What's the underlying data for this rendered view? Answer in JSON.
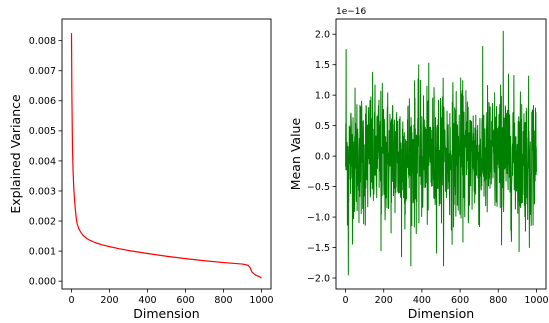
{
  "chart_data": [
    {
      "type": "line",
      "title": "",
      "xlabel": "Dimension",
      "ylabel": "Explained Variance",
      "xlim": [
        -50,
        1050
      ],
      "ylim": [
        -0.00026,
        0.00872
      ],
      "xticks": [
        0,
        200,
        400,
        600,
        800,
        1000
      ],
      "yticks": [
        0.0,
        0.001,
        0.002,
        0.003,
        0.004,
        0.005,
        0.006,
        0.007,
        0.008
      ],
      "ytick_labels": [
        "0.000",
        "0.001",
        "0.002",
        "0.003",
        "0.004",
        "0.005",
        "0.006",
        "0.007",
        "0.008"
      ],
      "grid": false,
      "series": [
        {
          "color": "#ff0000",
          "x": [
            0,
            2,
            5,
            8,
            12,
            16,
            20,
            25,
            30,
            40,
            50,
            60,
            80,
            100,
            130,
            160,
            200,
            250,
            300,
            400,
            500,
            600,
            700,
            800,
            900,
            930,
            940,
            950,
            970,
            990,
            1000
          ],
          "y": [
            0.00825,
            0.0062,
            0.0045,
            0.0037,
            0.0031,
            0.0027,
            0.0024,
            0.0021,
            0.0019,
            0.00172,
            0.00162,
            0.00153,
            0.00142,
            0.00135,
            0.00127,
            0.00121,
            0.00115,
            0.00108,
            0.00102,
            0.00092,
            0.00083,
            0.00075,
            0.00068,
            0.00062,
            0.00057,
            0.00053,
            0.00045,
            0.0003,
            0.0002,
            0.00015,
            0.0001
          ]
        }
      ]
    },
    {
      "type": "line",
      "title": "",
      "xlabel": "Dimension",
      "ylabel": "Mean Value",
      "offset_label": "1e−16",
      "xlim": [
        -50,
        1050
      ],
      "ylim": [
        -2.18,
        2.25
      ],
      "xticks": [
        0,
        200,
        400,
        600,
        800,
        1000
      ],
      "yticks": [
        -2.0,
        -1.5,
        -1.0,
        -0.5,
        0.0,
        0.5,
        1.0,
        1.5,
        2.0
      ],
      "ytick_labels": [
        "−2.0",
        "−1.5",
        "−1.0",
        "−0.5",
        "0.0",
        "0.5",
        "1.0",
        "1.5",
        "2.0"
      ],
      "grid": false,
      "series": [
        {
          "color": "#008000",
          "n_points": 1024,
          "y_range_observed": [
            -1.95,
            2.05
          ],
          "notable_points": [
            {
              "x": 3,
              "y": 1.75
            },
            {
              "x": 15,
              "y": -1.95
            },
            {
              "x": 845,
              "y": 2.05
            },
            {
              "x": 300,
              "y": -1.65
            },
            {
              "x": 190,
              "y": -1.55
            },
            {
              "x": 985,
              "y": -1.5
            }
          ]
        }
      ]
    }
  ]
}
